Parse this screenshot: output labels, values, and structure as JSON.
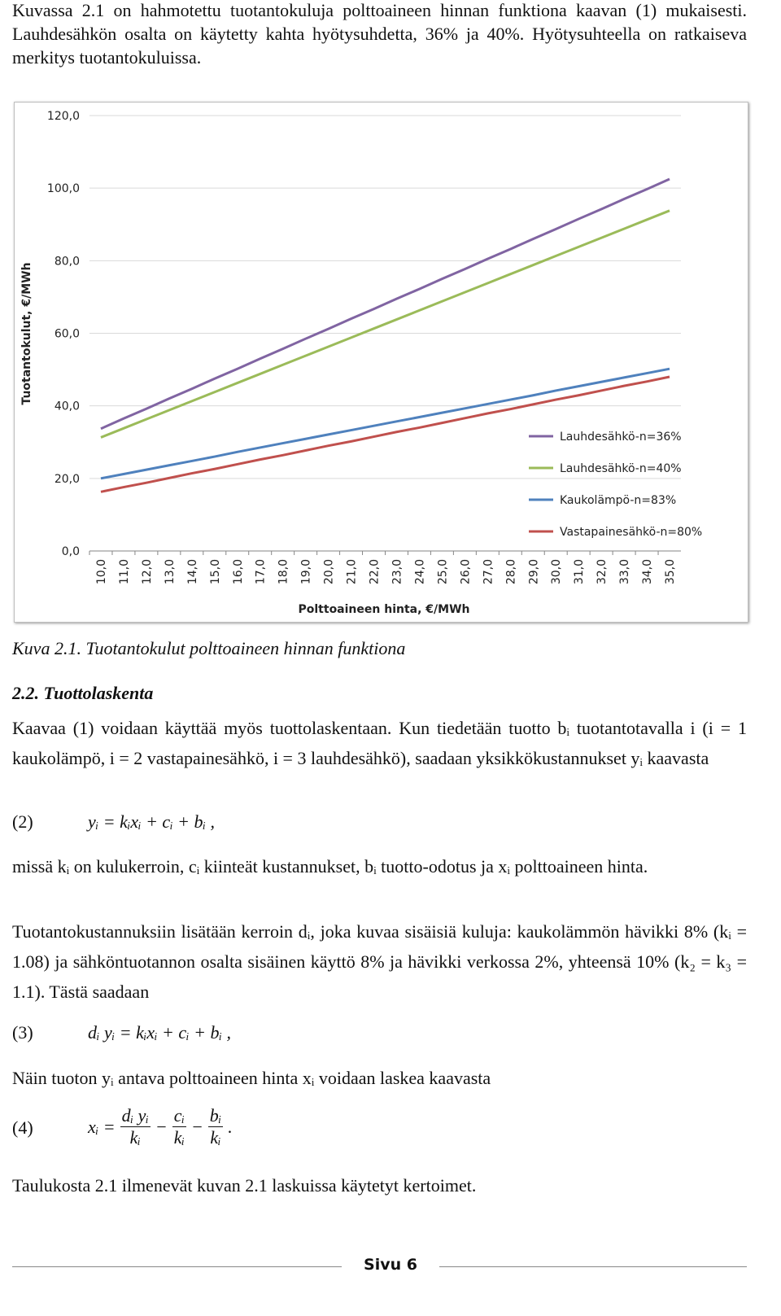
{
  "intro": "Kuvassa 2.1 on hahmotettu tuotantokuluja polttoaineen hinnan funktiona kaavan (1) mukaisesti. Lauhdesähkön osalta on käytetty kahta hyötysuhdetta, 36% ja 40%. Hyötysuhteella on ratkaiseva merkitys tuotantokuluissa.",
  "chart_data": {
    "type": "line",
    "y_label": "Tuotantokulut, €/MWh",
    "x_label": "Polttoaineen hinta, €/MWh",
    "categories": [
      "10,0",
      "11,0",
      "12,0",
      "13,0",
      "14,0",
      "15,0",
      "16,0",
      "17,0",
      "18,0",
      "19,0",
      "20,0",
      "21,0",
      "22,0",
      "23,0",
      "24,0",
      "25,0",
      "26,0",
      "27,0",
      "28,0",
      "29,0",
      "30,0",
      "31,0",
      "32,0",
      "33,0",
      "34,0",
      "35,0"
    ],
    "ylim": [
      0,
      120
    ],
    "yticks": [
      {
        "value": 0,
        "label": "0,0"
      },
      {
        "value": 20,
        "label": "20,0"
      },
      {
        "value": 40,
        "label": "40,0"
      },
      {
        "value": 60,
        "label": "60,0"
      },
      {
        "value": 80,
        "label": "80,0"
      },
      {
        "value": 100,
        "label": "100,0"
      },
      {
        "value": 120,
        "label": "120,0"
      }
    ],
    "grid": true,
    "legend": "right",
    "series": [
      {
        "name": "Lauhdesähkö-n=36%",
        "color": "#8064a2",
        "values": [
          33.7,
          36.5,
          39.2,
          42.0,
          44.7,
          47.5,
          50.2,
          53.0,
          55.7,
          58.5,
          61.2,
          64.0,
          66.7,
          69.5,
          72.2,
          75.0,
          77.7,
          80.5,
          83.2,
          86.0,
          88.7,
          91.5,
          94.2,
          97.0,
          99.7,
          102.5
        ]
      },
      {
        "name": "Lauhdesähkö-n=40%",
        "color": "#9bbb59",
        "values": [
          31.3,
          33.8,
          36.3,
          38.8,
          41.3,
          43.8,
          46.3,
          48.8,
          51.3,
          53.8,
          56.3,
          58.8,
          61.3,
          63.8,
          66.3,
          68.8,
          71.3,
          73.8,
          76.3,
          78.8,
          81.3,
          83.8,
          86.3,
          88.8,
          91.3,
          93.8
        ]
      },
      {
        "name": "Kaukolämpö-n=83%",
        "color": "#4f81bd",
        "values": [
          20.0,
          21.2,
          22.4,
          23.6,
          24.8,
          26.0,
          27.3,
          28.5,
          29.7,
          30.9,
          32.1,
          33.3,
          34.5,
          35.7,
          36.9,
          38.1,
          39.3,
          40.5,
          41.7,
          42.9,
          44.2,
          45.4,
          46.6,
          47.8,
          49.0,
          50.2
        ]
      },
      {
        "name": "Vastapainesähkö-n=80%",
        "color": "#c0504d",
        "values": [
          16.3,
          17.6,
          18.8,
          20.1,
          21.4,
          22.6,
          23.9,
          25.2,
          26.4,
          27.7,
          29.0,
          30.2,
          31.5,
          32.8,
          34.0,
          35.3,
          36.6,
          37.9,
          39.1,
          40.4,
          41.7,
          42.9,
          44.2,
          45.5,
          46.7,
          48.0
        ]
      }
    ]
  },
  "caption": "Kuva 2.1. Tuotantokulut polttoaineen hinnan funktiona",
  "heading": "2.2. Tuottolaskenta",
  "paragraph_1": "Kaavaa (1) voidaan käyttää myös tuottolaskentaan. Kun tiedetään tuotto bᵢ tuotantotavalla i (i = 1 kaukolämpö, i = 2 vastapainesähkö, i = 3 lauhdesähkö), saadaan yksikkökustannukset yᵢ kaavasta",
  "equation_2": {
    "number": "(2)",
    "formula": "yᵢ = kᵢxᵢ + cᵢ + bᵢ ,"
  },
  "paragraph_2": "missä kᵢ on kulukerroin, cᵢ kiinteät kustannukset, bᵢ tuotto-odotus ja xᵢ polttoaineen hinta.",
  "paragraph_3": "Tuotantokustannuksiin lisätään kerroin dᵢ, joka kuvaa sisäisiä kuluja: kaukolämmön hävikki 8% (kᵢ = 1.08) ja sähköntuotannon osalta sisäinen käyttö 8% ja hävikki verkossa 2%, yhteensä 10% (k₂ = k₃ = 1.1). Tästä saadaan",
  "equation_3": {
    "number": "(3)",
    "formula": "dᵢ yᵢ = kᵢxᵢ + cᵢ + bᵢ ,"
  },
  "paragraph_4": "Näin tuoton yᵢ antava polttoaineen hinta xᵢ voidaan laskea kaavasta",
  "equation_4": {
    "number": "(4)",
    "lhs": "xᵢ =",
    "fractions": [
      {
        "num": "dᵢ yᵢ",
        "den": "kᵢ"
      },
      {
        "num": "cᵢ",
        "den": "kᵢ"
      },
      {
        "num": "bᵢ",
        "den": "kᵢ"
      }
    ],
    "operator": "−",
    "end": "."
  },
  "paragraph_5": "Taulukosta 2.1 ilmenevät kuvan 2.1 laskuissa käytetyt kertoimet.",
  "footer": "Sivu 6"
}
